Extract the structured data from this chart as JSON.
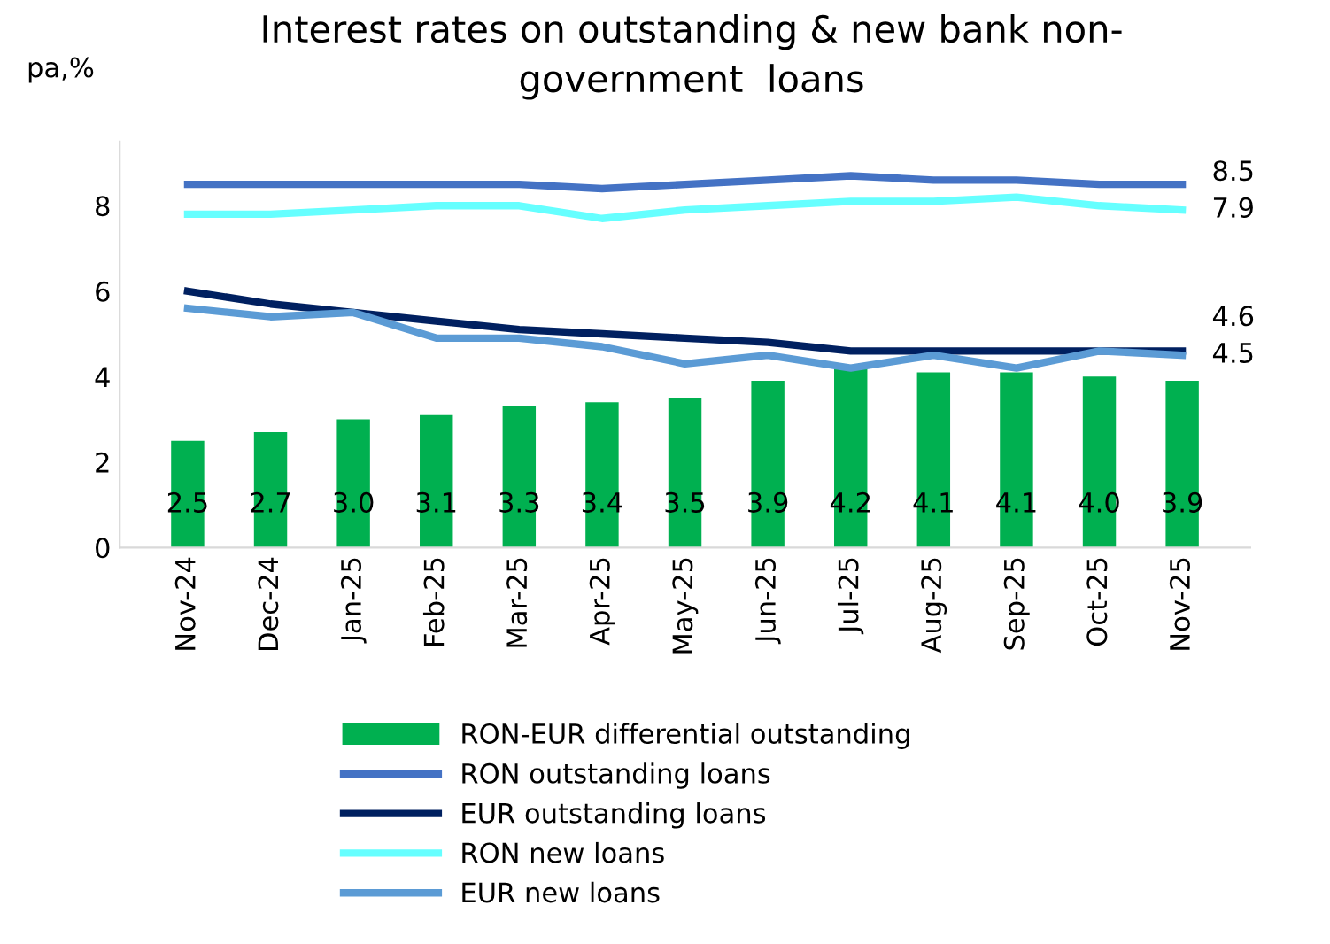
{
  "chart_data": {
    "type": "bar",
    "title": "Interest rates on outstanding & new bank non-\ngovernment  loans",
    "ylabel": "pa,%",
    "categories": [
      "Nov-24",
      "Dec-24",
      "Jan-25",
      "Feb-25",
      "Mar-25",
      "Apr-25",
      "May-25",
      "Jun-25",
      "Jul-25",
      "Aug-25",
      "Sep-25",
      "Oct-25",
      "Nov-25"
    ],
    "series": [
      {
        "name": "RON-EUR differential outstanding",
        "color": "#00b050",
        "values": [
          2.5,
          2.7,
          3.0,
          3.1,
          3.3,
          3.4,
          3.5,
          3.9,
          4.2,
          4.1,
          4.1,
          4.0,
          3.9
        ],
        "value_labels": [
          "2.5",
          "2.7",
          "3.0",
          "3.1",
          "3.3",
          "3.4",
          "3.5",
          "3.9",
          "4.2",
          "4.1",
          "4.1",
          "4.0",
          "3.9"
        ]
      },
      {
        "name": "RON outstanding loans",
        "type": "line",
        "color": "#4472c4",
        "values": [
          8.5,
          8.5,
          8.5,
          8.5,
          8.5,
          8.4,
          8.5,
          8.6,
          8.7,
          8.6,
          8.6,
          8.5,
          8.5
        ],
        "value_labels": [
          null,
          null,
          null,
          null,
          null,
          null,
          null,
          null,
          null,
          null,
          null,
          null,
          "8.5"
        ]
      },
      {
        "name": "EUR outstanding loans",
        "type": "line",
        "color": "#002060",
        "values": [
          6.0,
          5.7,
          5.5,
          5.3,
          5.1,
          5.0,
          4.9,
          4.8,
          4.6,
          4.6,
          4.6,
          4.6,
          4.6
        ],
        "value_labels": [
          null,
          null,
          null,
          null,
          null,
          null,
          null,
          null,
          null,
          null,
          null,
          null,
          "4.6"
        ]
      },
      {
        "name": "RON new loans",
        "type": "line",
        "color": "#66ffff",
        "values": [
          7.8,
          7.8,
          7.9,
          8.0,
          8.0,
          7.7,
          7.9,
          8.0,
          8.1,
          8.1,
          8.2,
          8.0,
          7.9
        ],
        "value_labels": [
          null,
          null,
          null,
          null,
          null,
          null,
          null,
          null,
          null,
          null,
          null,
          null,
          "7.9"
        ]
      },
      {
        "name": "EUR new loans",
        "type": "line",
        "color": "#5b9bd5",
        "values": [
          5.6,
          5.4,
          5.5,
          4.9,
          4.9,
          4.7,
          4.3,
          4.5,
          4.2,
          4.5,
          4.2,
          4.6,
          4.5
        ],
        "value_labels": [
          null,
          null,
          null,
          null,
          null,
          null,
          null,
          null,
          null,
          null,
          null,
          null,
          "4.5"
        ]
      }
    ],
    "ylim": [
      0,
      9.5
    ],
    "yticks": [
      0,
      2,
      4,
      6,
      8
    ],
    "grid": false,
    "legend": "bottom"
  }
}
